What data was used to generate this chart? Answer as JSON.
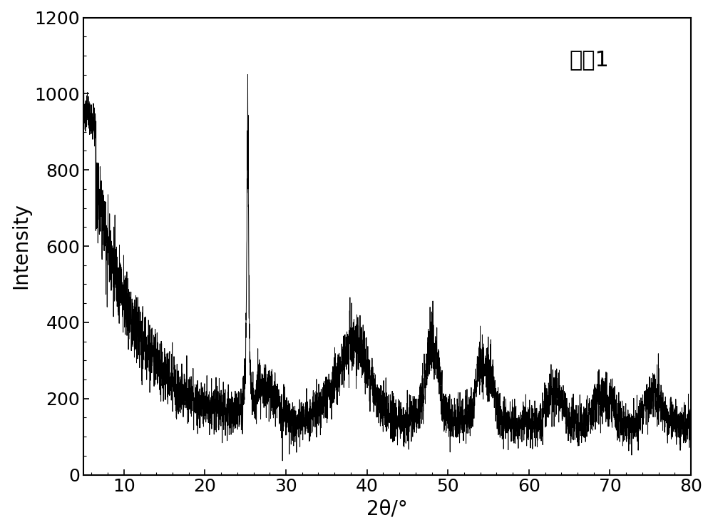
{
  "title": "实例1",
  "xlabel": "2θ/°",
  "ylabel": "Intensity",
  "xlim": [
    5,
    80
  ],
  "ylim": [
    0,
    1200
  ],
  "xticks": [
    10,
    20,
    30,
    40,
    50,
    60,
    70,
    80
  ],
  "yticks": [
    0,
    200,
    400,
    600,
    800,
    1000,
    1200
  ],
  "line_color": "#000000",
  "background_color": "#ffffff",
  "title_fontsize": 22,
  "axis_label_fontsize": 20,
  "tick_fontsize": 18
}
